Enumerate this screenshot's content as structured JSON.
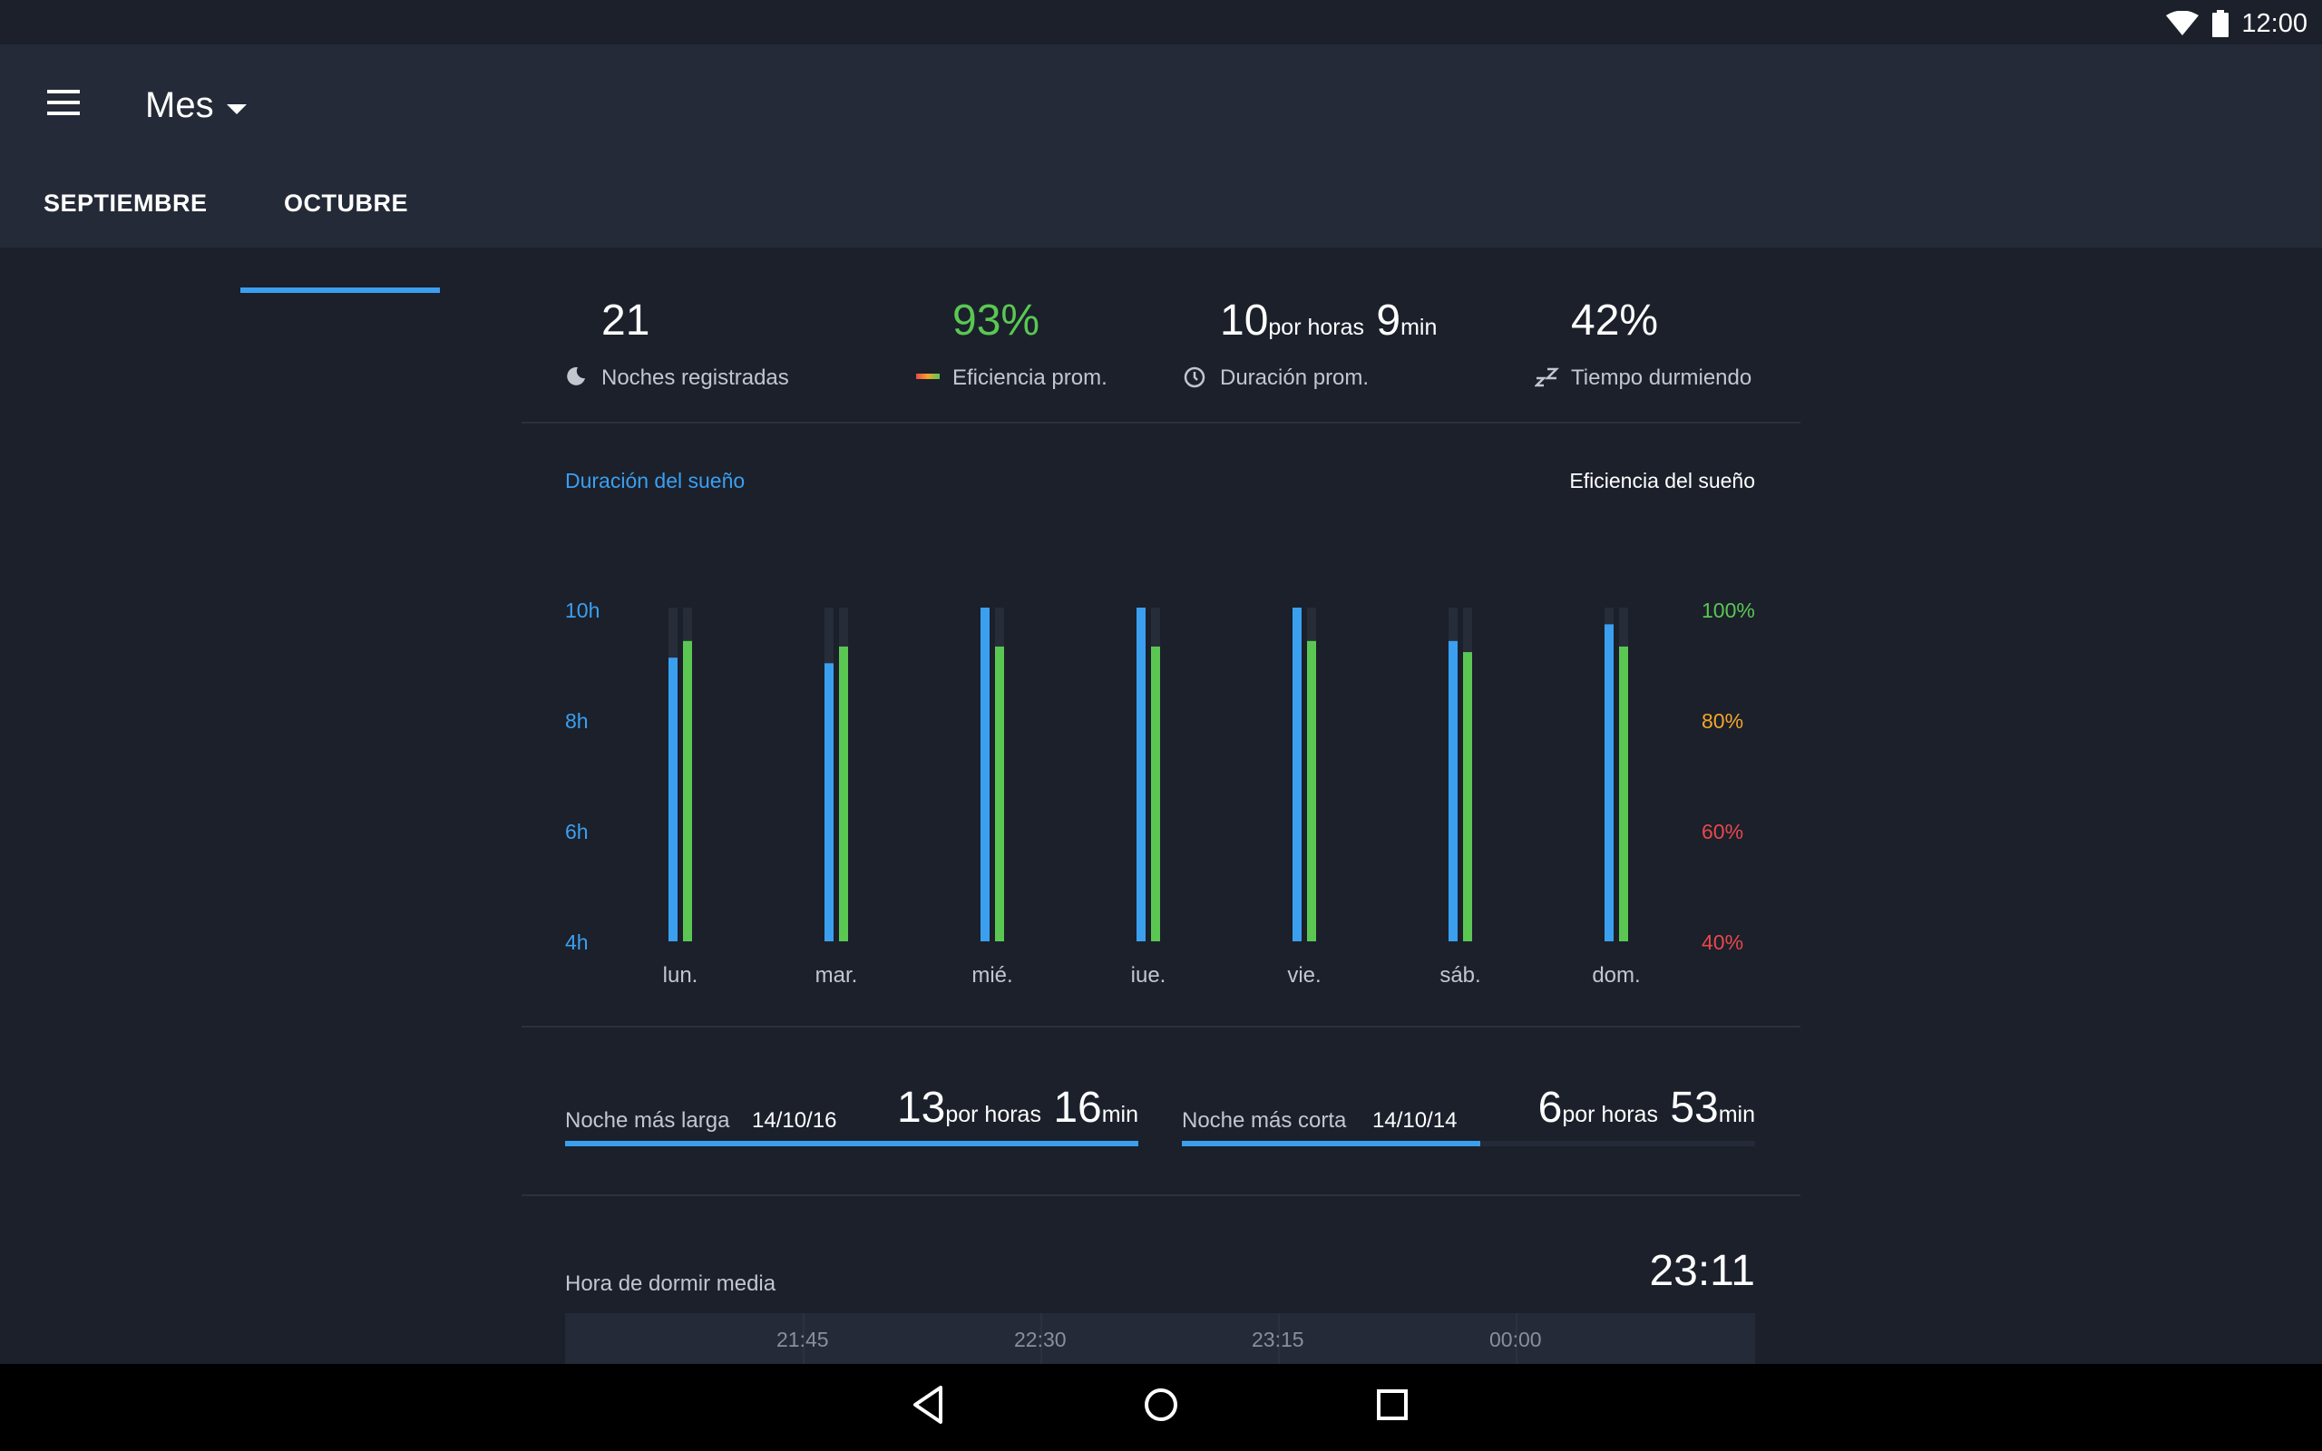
{
  "status_bar": {
    "time": "12:00"
  },
  "app_bar": {
    "title": "Mes"
  },
  "tabs": [
    {
      "label": "SEPTIEMBRE",
      "active": false
    },
    {
      "label": "OCTUBRE",
      "active": true
    }
  ],
  "summary": {
    "nights": {
      "value": "21",
      "label": "Noches registradas"
    },
    "efficiency": {
      "value": "93%",
      "label": "Eficiencia prom."
    },
    "duration": {
      "hours": "10",
      "hours_unit": "por horas",
      "minutes": "9",
      "minutes_unit": "min",
      "label": "Duración prom."
    },
    "asleep": {
      "value": "42%",
      "label": "Tiempo durmiendo"
    }
  },
  "chart_tabs": {
    "duration": "Duración del sueño",
    "efficiency": "Eficiencia del sueño"
  },
  "chart_data": {
    "type": "bar",
    "categories": [
      "lun.",
      "mar.",
      "mié.",
      "iue.",
      "vie.",
      "sáb.",
      "dom."
    ],
    "series": [
      {
        "values": [
          9.1,
          9.0,
          10.0,
          10.0,
          10.0,
          9.4,
          9.7
        ],
        "axis": "left",
        "color": "#3b9ff0"
      },
      {
        "values": [
          94,
          93,
          93,
          93,
          94,
          92,
          93
        ],
        "axis": "right",
        "color": "#5ac753"
      }
    ],
    "left_axis": {
      "ticks": [
        "10h",
        "8h",
        "6h",
        "4h"
      ],
      "ylim": [
        4,
        10
      ]
    },
    "right_axis": {
      "ticks": [
        {
          "label": "100%",
          "color": "#5ac753"
        },
        {
          "label": "80%",
          "color": "#f4a62a"
        },
        {
          "label": "60%",
          "color": "#e8484a"
        },
        {
          "label": "40%",
          "color": "#e8484a"
        }
      ],
      "ylim": [
        40,
        100
      ]
    }
  },
  "records": {
    "longest": {
      "label": "Noche más larga",
      "date": "14/10/16",
      "hours": "13",
      "hours_unit": "por horas",
      "minutes": "16",
      "minutes_unit": "min",
      "fill": 1.0
    },
    "shortest": {
      "label": "Noche más corta",
      "date": "14/10/14",
      "hours": "6",
      "hours_unit": "por horas",
      "minutes": "53",
      "minutes_unit": "min",
      "fill": 0.52
    }
  },
  "bedtime": {
    "label": "Hora de dormir media",
    "value": "23:11",
    "ticks": [
      "21:45",
      "22:30",
      "23:15",
      "00:00"
    ]
  },
  "colors": {
    "accent": "#3b9ff0",
    "efficiency_green": "#5ac753",
    "background": "#1b202b",
    "app_bar": "#242a37"
  }
}
